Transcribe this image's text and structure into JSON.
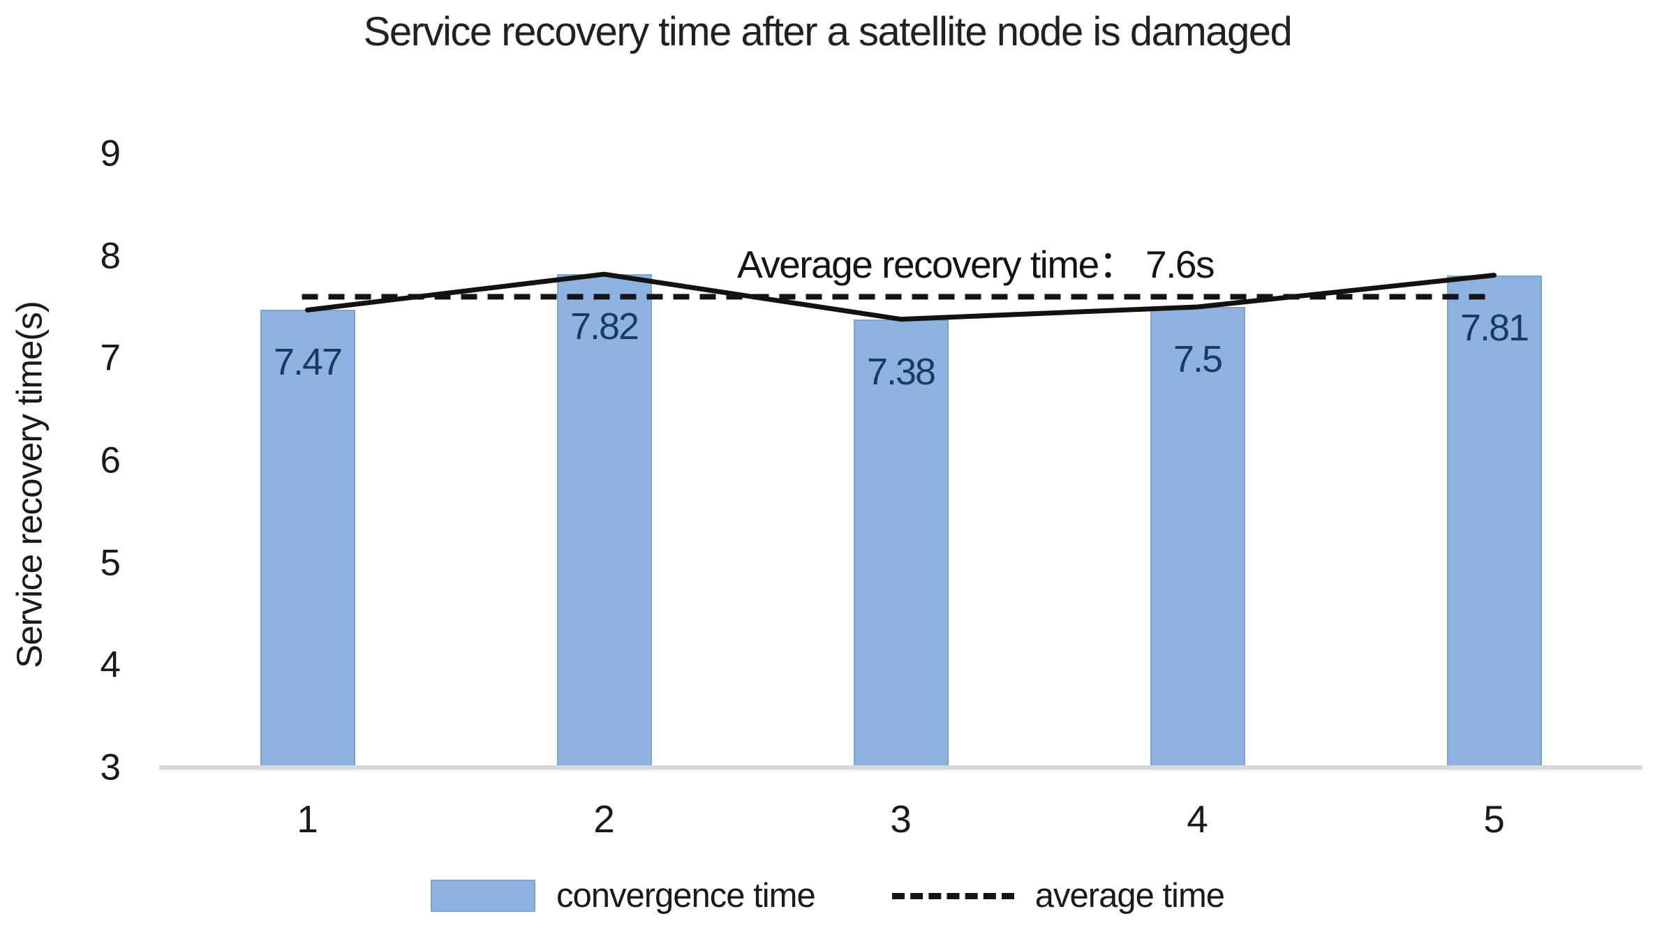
{
  "title": "Service recovery time after a satellite node is damaged",
  "y_axis": {
    "label": "Service recovery time(s)",
    "ticks": [
      9,
      8,
      7,
      6,
      5,
      4,
      3
    ]
  },
  "x_axis": {
    "ticks": [
      "1",
      "2",
      "3",
      "4",
      "5"
    ]
  },
  "annotation": "Average recovery time： 7.6s",
  "legend": {
    "items": [
      {
        "label": "convergence time",
        "marker": "bar-swatch"
      },
      {
        "label": "average time",
        "marker": "dashed-line-swatch"
      }
    ]
  },
  "colors": {
    "bar_fill": "#8db3e2",
    "bar_border": "#7da3cf",
    "bar_label_text": "#1c3a5e",
    "line": "#121212",
    "dashed_line": "#141414",
    "axis_line": "#d8d8d8",
    "text": "#1a1a1a"
  },
  "chart_data": {
    "type": "bar",
    "title": "Service recovery time after a satellite node is damaged",
    "xlabel": "",
    "ylabel": "Service recovery time(s)",
    "categories": [
      "1",
      "2",
      "3",
      "4",
      "5"
    ],
    "series": [
      {
        "name": "convergence time",
        "type": "bar",
        "values": [
          7.47,
          7.82,
          7.38,
          7.5,
          7.81
        ]
      },
      {
        "name": "convergence time trend",
        "type": "line",
        "values": [
          7.47,
          7.82,
          7.38,
          7.5,
          7.81
        ]
      },
      {
        "name": "average time",
        "type": "dashed-line",
        "values": [
          7.6,
          7.6,
          7.6,
          7.6,
          7.6
        ]
      }
    ],
    "bar_labels": [
      "7.47",
      "7.82",
      "7.38",
      "7.5",
      "7.81"
    ],
    "average_value": 7.6,
    "ylim": [
      3,
      9
    ],
    "ytick_step": 1,
    "grid": false,
    "legend_position": "bottom"
  }
}
